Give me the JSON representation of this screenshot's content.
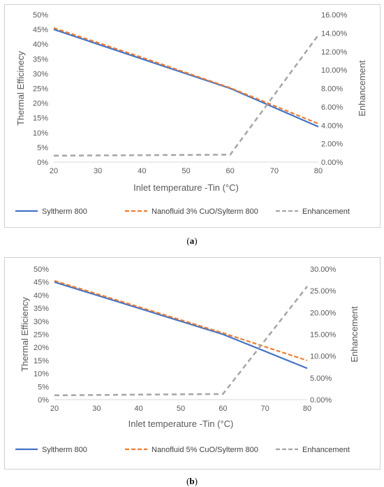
{
  "panels": [
    {
      "caption": "a",
      "chart_data": {
        "type": "line",
        "x": [
          20,
          30,
          40,
          50,
          60,
          70,
          80
        ],
        "xlabel": "Inlet temperature -Tin (°C)",
        "ylabel": "Thermal Efficinecy",
        "y2label": "Enhancement",
        "xlim": [
          20,
          80
        ],
        "ylim": [
          0,
          0.5
        ],
        "y2lim": [
          0,
          0.16
        ],
        "x_ticks": [
          "20",
          "30",
          "40",
          "50",
          "60",
          "70",
          "80"
        ],
        "y_ticks": [
          "0%",
          "5%",
          "10%",
          "15%",
          "20%",
          "25%",
          "30%",
          "35%",
          "40%",
          "45%",
          "50%"
        ],
        "y2_ticks": [
          "0.00%",
          "2.00%",
          "4.00%",
          "6.00%",
          "8.00%",
          "10.00%",
          "12.00%",
          "14.00%",
          "16.00%"
        ],
        "grid": false,
        "legend_position": "bottom",
        "series": [
          {
            "name": "Syltherm 800",
            "axis": "left",
            "style": "solid",
            "color": "#4472c4",
            "x": [
              20,
              40,
              60,
              80
            ],
            "y": [
              0.45,
              0.35,
              0.25,
              0.12
            ]
          },
          {
            "name": "Nanofluid 3% CuO/Sylterm 800",
            "axis": "left",
            "style": "dashed",
            "color": "#ed7d31",
            "x": [
              20,
              40,
              60,
              80
            ],
            "y": [
              0.455,
              0.355,
              0.252,
              0.13
            ]
          },
          {
            "name": "Enhancement",
            "axis": "right",
            "style": "dashed",
            "color": "#a5a5a5",
            "x": [
              20,
              40,
              60,
              80
            ],
            "y": [
              0.007,
              0.0075,
              0.008,
              0.138
            ]
          }
        ]
      }
    },
    {
      "caption": "b",
      "chart_data": {
        "type": "line",
        "x": [
          20,
          30,
          40,
          50,
          60,
          70,
          80
        ],
        "xlabel": "Inlet temperature -Tin (°C)",
        "ylabel": "Thermal Efficiency",
        "y2label": "Enhancement",
        "xlim": [
          20,
          80
        ],
        "ylim": [
          0,
          0.5
        ],
        "y2lim": [
          0,
          0.3
        ],
        "x_ticks": [
          "20",
          "30",
          "40",
          "50",
          "60",
          "70",
          "80"
        ],
        "y_ticks": [
          "0%",
          "5%",
          "10%",
          "15%",
          "20%",
          "25%",
          "30%",
          "35%",
          "40%",
          "45%",
          "50%"
        ],
        "y2_ticks": [
          "0.00%",
          "5.00%",
          "10.00%",
          "15.00%",
          "20.00%",
          "25.00%",
          "30.00%"
        ],
        "grid": false,
        "legend_position": "bottom",
        "series": [
          {
            "name": "Syltherm 800",
            "axis": "left",
            "style": "solid",
            "color": "#4472c4",
            "x": [
              20,
              40,
              60,
              80
            ],
            "y": [
              0.45,
              0.35,
              0.25,
              0.12
            ]
          },
          {
            "name": "Nanofluid 5% CuO/Sylterm 800",
            "axis": "left",
            "style": "dashed",
            "color": "#ed7d31",
            "x": [
              20,
              40,
              60,
              80
            ],
            "y": [
              0.455,
              0.355,
              0.255,
              0.15
            ]
          },
          {
            "name": "Enhancement",
            "axis": "right",
            "style": "dashed",
            "color": "#a5a5a5",
            "x": [
              20,
              40,
              60,
              80
            ],
            "y": [
              0.01,
              0.0115,
              0.013,
              0.26
            ]
          }
        ]
      }
    }
  ]
}
